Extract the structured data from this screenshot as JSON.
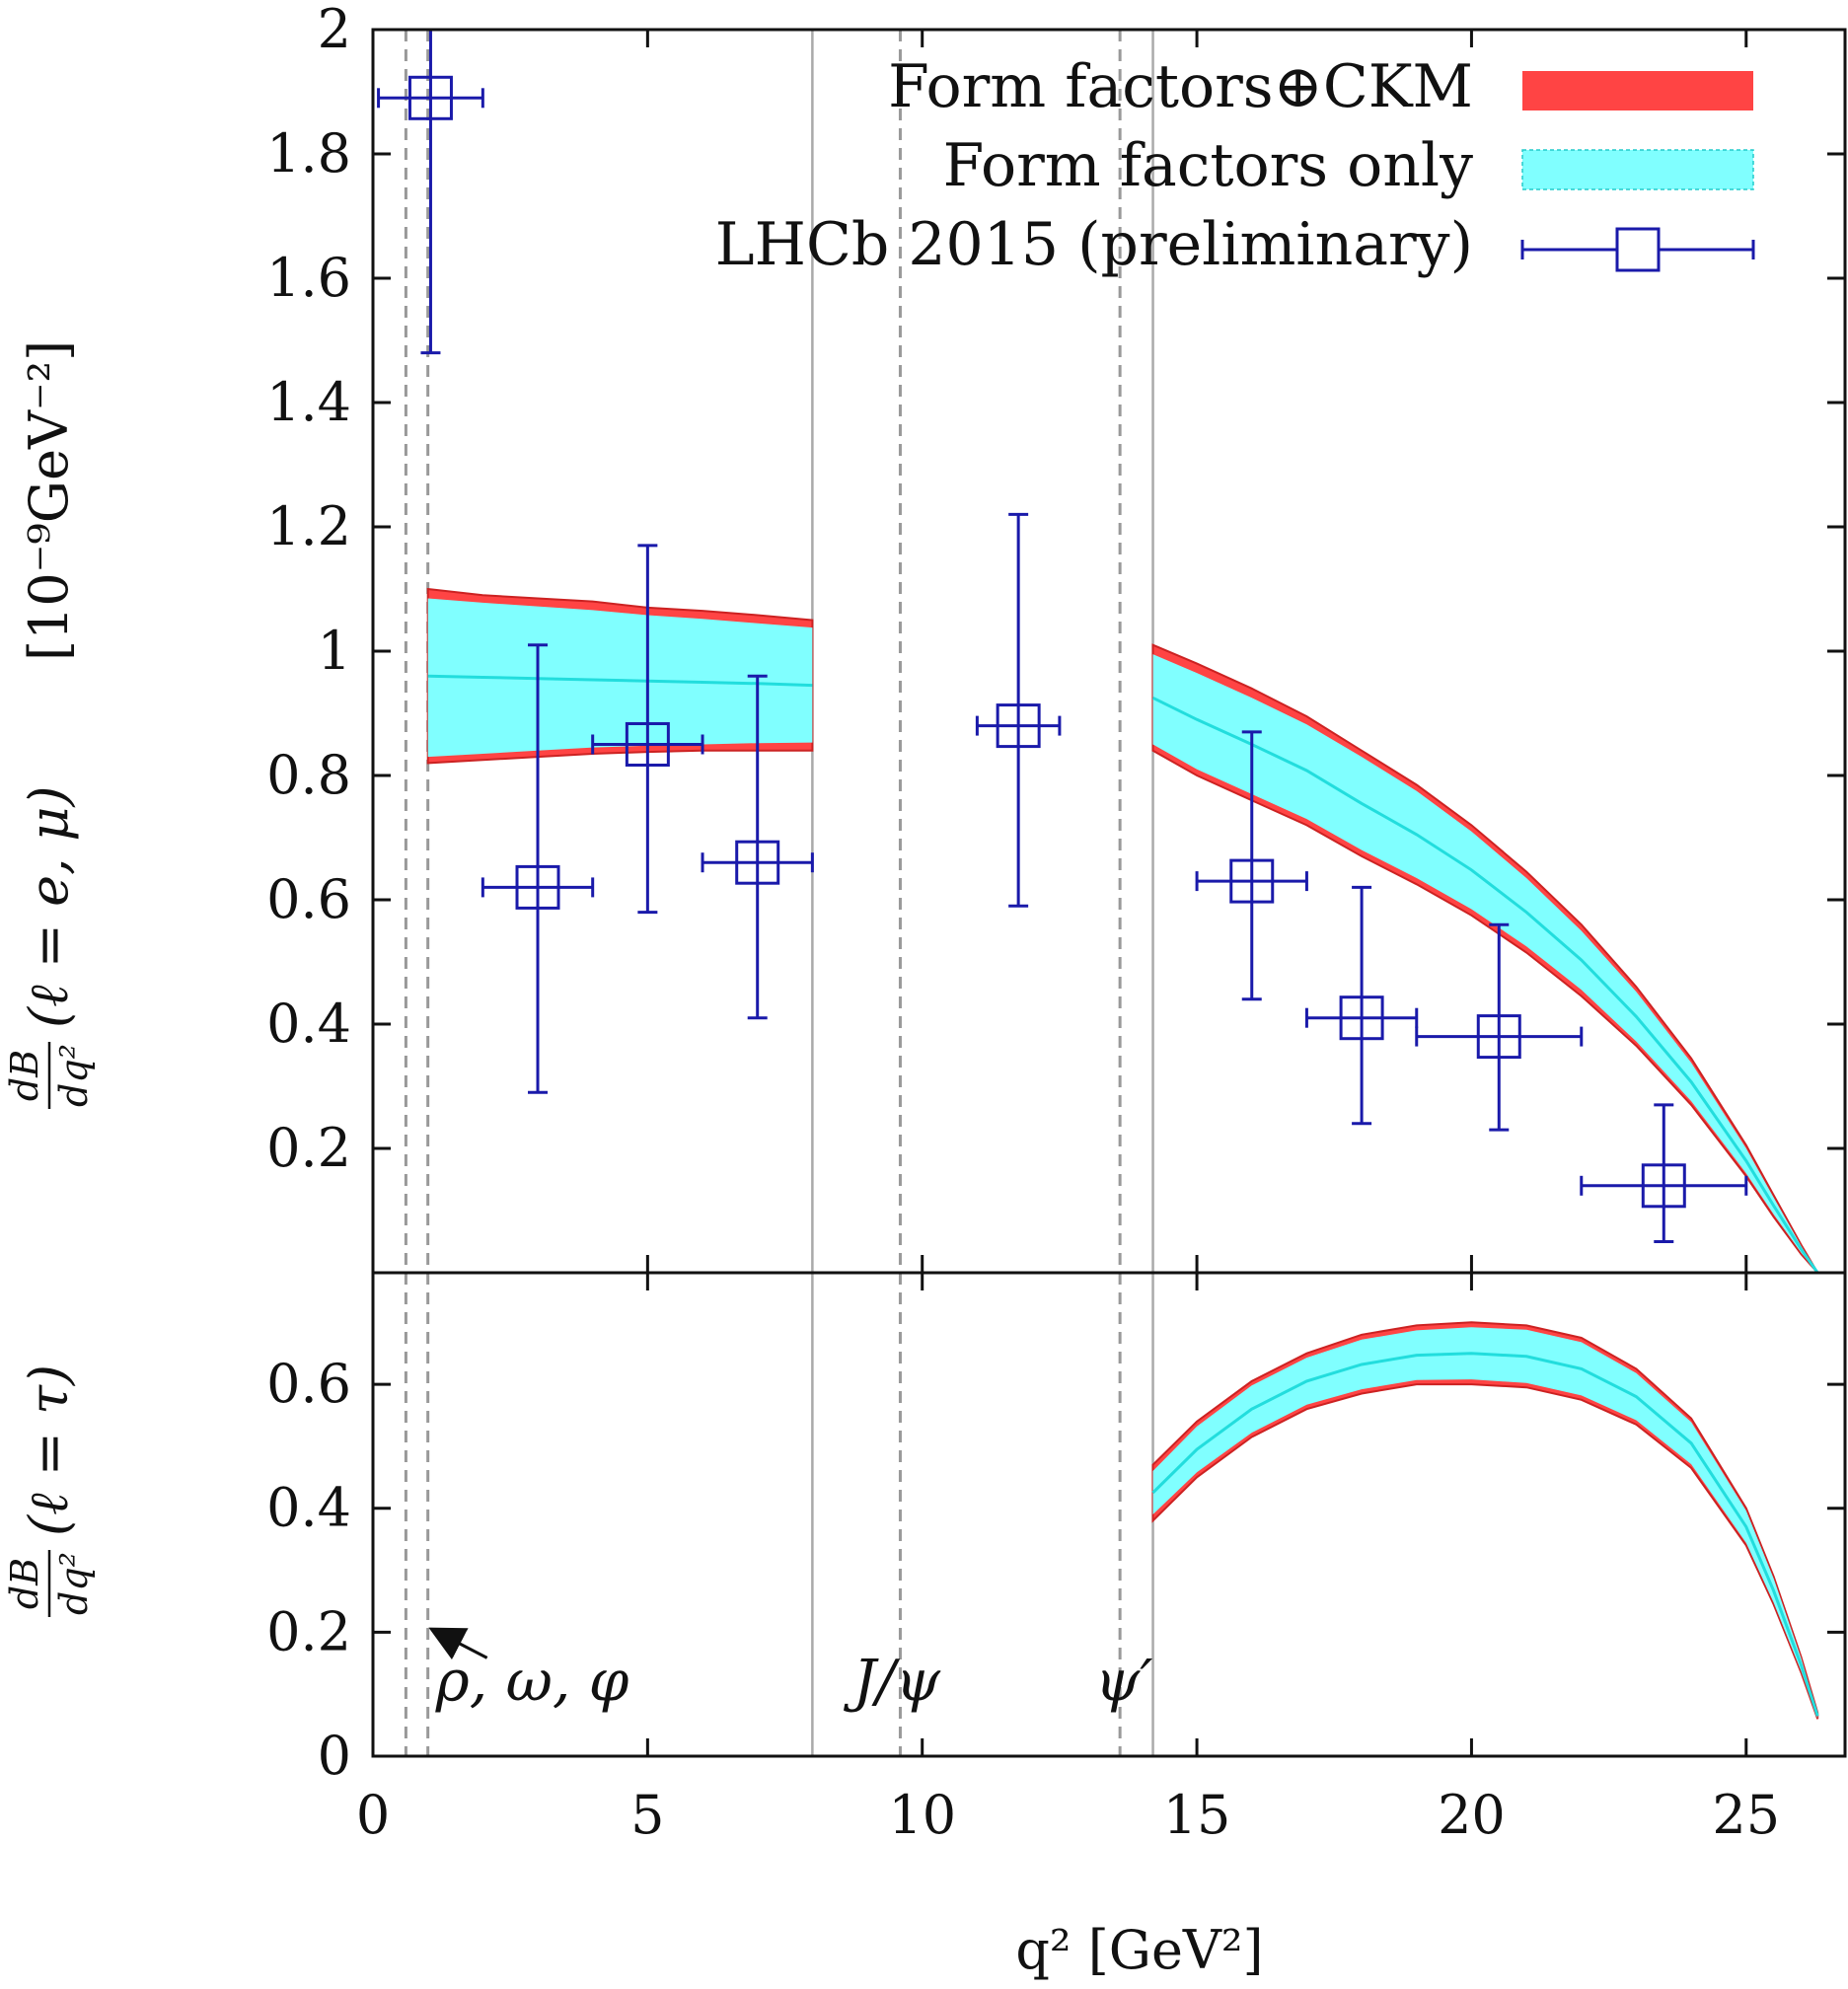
{
  "chart_data": [
    {
      "panel": "top",
      "type": "line",
      "ylabel_frac_num": "dB",
      "ylabel_frac_den": "dq²",
      "ylabel_rest": "(ℓ = e, μ)",
      "ylabel_units": "[10⁻⁹GeV⁻²]",
      "xlim": [
        0,
        26.8
      ],
      "ylim": [
        0,
        2.0
      ],
      "y_ticks": [
        0.2,
        0.4,
        0.6,
        0.8,
        1,
        1.2,
        1.4,
        1.6,
        1.8,
        2
      ],
      "y_tick_labels": [
        "0.2",
        "0.4",
        "0.6",
        "0.8",
        "1",
        "1.2",
        "1.4",
        "1.6",
        "1.8",
        "2"
      ],
      "legend_placement": "top-right",
      "series": [
        {
          "name": "Form factors⊕CKM",
          "kind": "band",
          "color": "#ff4444",
          "segments": [
            {
              "x": [
                1.0,
                2,
                3,
                4,
                5,
                6,
                7,
                8.0
              ],
              "lo": [
                0.82,
                0.825,
                0.83,
                0.835,
                0.838,
                0.84,
                0.84,
                0.84
              ],
              "hi": [
                1.1,
                1.09,
                1.085,
                1.08,
                1.07,
                1.065,
                1.058,
                1.05
              ]
            },
            {
              "x": [
                14.2,
                15,
                16,
                17,
                18,
                19,
                20,
                21,
                22,
                23,
                24,
                25,
                25.5,
                26.0,
                26.3
              ],
              "lo": [
                0.84,
                0.8,
                0.76,
                0.72,
                0.67,
                0.625,
                0.575,
                0.515,
                0.445,
                0.365,
                0.27,
                0.155,
                0.09,
                0.03,
                0.0
              ],
              "hi": [
                1.01,
                0.98,
                0.94,
                0.895,
                0.84,
                0.785,
                0.72,
                0.645,
                0.56,
                0.46,
                0.345,
                0.205,
                0.125,
                0.045,
                0.0
              ]
            }
          ]
        },
        {
          "name": "Form factors only",
          "kind": "band",
          "color": "#80ffff",
          "segments": [
            {
              "x": [
                1.0,
                2,
                3,
                4,
                5,
                6,
                7,
                8.0
              ],
              "lo": [
                0.83,
                0.835,
                0.84,
                0.845,
                0.848,
                0.85,
                0.852,
                0.853
              ],
              "hi": [
                1.085,
                1.078,
                1.072,
                1.066,
                1.058,
                1.052,
                1.045,
                1.038
              ]
            },
            {
              "x": [
                14.2,
                15,
                16,
                17,
                18,
                19,
                20,
                21,
                22,
                23,
                24,
                25,
                25.5,
                26.0,
                26.3
              ],
              "lo": [
                0.85,
                0.81,
                0.77,
                0.73,
                0.68,
                0.635,
                0.585,
                0.525,
                0.455,
                0.372,
                0.276,
                0.16,
                0.094,
                0.032,
                0.0
              ],
              "hi": [
                0.995,
                0.965,
                0.925,
                0.882,
                0.83,
                0.775,
                0.71,
                0.635,
                0.55,
                0.452,
                0.338,
                0.2,
                0.121,
                0.043,
                0.0
              ]
            }
          ]
        },
        {
          "kind": "central",
          "color": "#22dddd",
          "segments": [
            {
              "x": [
                1.0,
                2,
                3,
                4,
                5,
                6,
                7,
                8.0
              ],
              "y": [
                0.96,
                0.958,
                0.956,
                0.954,
                0.952,
                0.95,
                0.948,
                0.945
              ]
            },
            {
              "x": [
                14.2,
                15,
                16,
                17,
                18,
                19,
                20,
                21,
                22,
                23,
                24,
                25,
                25.5,
                26.0,
                26.3
              ],
              "y": [
                0.925,
                0.89,
                0.85,
                0.808,
                0.755,
                0.705,
                0.648,
                0.58,
                0.503,
                0.412,
                0.307,
                0.18,
                0.108,
                0.038,
                0.0
              ]
            }
          ]
        },
        {
          "name": "LHCb 2015 (preliminary)",
          "kind": "points",
          "color": "#1a1aaa",
          "points": [
            {
              "x": 1.05,
              "xerr": 0.95,
              "y": 1.89,
              "ylo": 1.48,
              "yhi": 2.0
            },
            {
              "x": 3.0,
              "xerr": 1.0,
              "y": 0.62,
              "ylo": 0.29,
              "yhi": 1.01
            },
            {
              "x": 5.0,
              "xerr": 1.0,
              "y": 0.85,
              "ylo": 0.58,
              "yhi": 1.17
            },
            {
              "x": 7.0,
              "xerr": 1.0,
              "y": 0.66,
              "ylo": 0.41,
              "yhi": 0.96
            },
            {
              "x": 11.75,
              "xerr": 0.75,
              "y": 0.88,
              "ylo": 0.59,
              "yhi": 1.22
            },
            {
              "x": 16.0,
              "xerr": 1.0,
              "y": 0.63,
              "ylo": 0.44,
              "yhi": 0.87
            },
            {
              "x": 18.0,
              "xerr": 1.0,
              "y": 0.41,
              "ylo": 0.24,
              "yhi": 0.62
            },
            {
              "x": 20.5,
              "xerr": 1.5,
              "y": 0.38,
              "ylo": 0.23,
              "yhi": 0.56
            },
            {
              "x": 23.5,
              "xerr": 1.5,
              "y": 0.14,
              "ylo": 0.05,
              "yhi": 0.27
            }
          ]
        }
      ]
    },
    {
      "panel": "bottom",
      "type": "line",
      "ylabel_frac_num": "dB",
      "ylabel_frac_den": "dq²",
      "ylabel_rest": "(ℓ = τ)",
      "xlabel": "q² [GeV²]",
      "xlim": [
        0,
        26.8
      ],
      "ylim": [
        0,
        0.78
      ],
      "x_ticks": [
        0,
        5,
        10,
        15,
        20,
        25
      ],
      "x_tick_labels": [
        "0",
        "5",
        "10",
        "15",
        "20",
        "25"
      ],
      "y_ticks": [
        0,
        0.2,
        0.4,
        0.6
      ],
      "y_tick_labels": [
        "0",
        "0.2",
        "0.4",
        "0.6"
      ],
      "series": [
        {
          "name": "Form factors⊕CKM",
          "kind": "band",
          "color": "#ff4444",
          "segments": [
            {
              "x": [
                14.2,
                15,
                16,
                17,
                18,
                19,
                20,
                21,
                22,
                23,
                24,
                25,
                25.5,
                26.0,
                26.3
              ],
              "lo": [
                0.38,
                0.45,
                0.515,
                0.56,
                0.585,
                0.6,
                0.6,
                0.595,
                0.575,
                0.535,
                0.465,
                0.34,
                0.245,
                0.135,
                0.06
              ],
              "hi": [
                0.47,
                0.54,
                0.605,
                0.65,
                0.68,
                0.695,
                0.7,
                0.695,
                0.675,
                0.625,
                0.545,
                0.4,
                0.29,
                0.16,
                0.07
              ]
            }
          ]
        },
        {
          "name": "Form factors only",
          "kind": "band",
          "color": "#80ffff",
          "segments": [
            {
              "x": [
                14.2,
                15,
                16,
                17,
                18,
                19,
                20,
                21,
                22,
                23,
                24,
                25,
                25.5,
                26.0,
                26.3
              ],
              "lo": [
                0.39,
                0.458,
                0.522,
                0.567,
                0.592,
                0.607,
                0.608,
                0.602,
                0.582,
                0.542,
                0.471,
                0.344,
                0.248,
                0.137,
                0.061
              ],
              "hi": [
                0.46,
                0.532,
                0.598,
                0.643,
                0.672,
                0.687,
                0.692,
                0.688,
                0.668,
                0.618,
                0.539,
                0.396,
                0.287,
                0.158,
                0.069
              ]
            }
          ]
        },
        {
          "kind": "central",
          "color": "#22dddd",
          "segments": [
            {
              "x": [
                14.2,
                15,
                16,
                17,
                18,
                19,
                20,
                21,
                22,
                23,
                24,
                25,
                25.5,
                26.0,
                26.3
              ],
              "y": [
                0.425,
                0.495,
                0.56,
                0.605,
                0.632,
                0.647,
                0.65,
                0.645,
                0.625,
                0.58,
                0.505,
                0.37,
                0.267,
                0.147,
                0.065
              ]
            }
          ]
        }
      ]
    }
  ],
  "vlines": {
    "dashed": [
      0.6,
      1.0,
      9.6,
      13.6
    ],
    "solid": [
      8.0,
      14.2
    ]
  },
  "annotations": [
    {
      "text": "ρ, ω, φ",
      "x": 1.0,
      "y": 0.08,
      "arrow_to": [
        1.0,
        0.2
      ]
    },
    {
      "text": "J/ψ",
      "x": 8.6,
      "y": 0.08
    },
    {
      "text": "ψ′",
      "x": 13.0,
      "y": 0.08
    }
  ]
}
